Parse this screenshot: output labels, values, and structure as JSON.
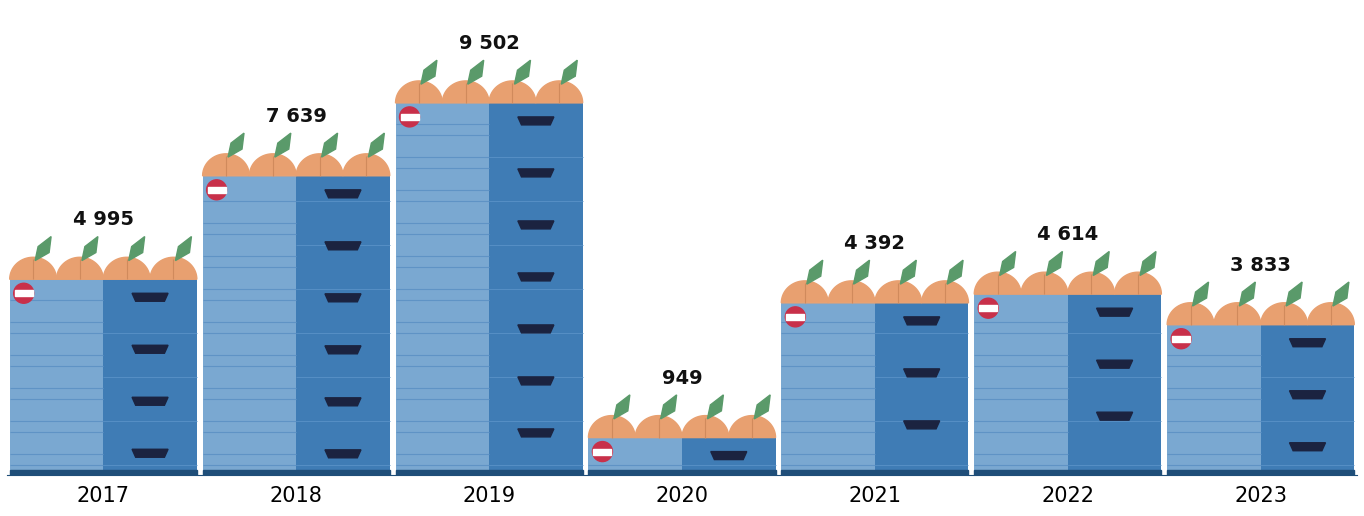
{
  "chart_data": {
    "type": "bar",
    "categories": [
      "2017",
      "2018",
      "2019",
      "2020",
      "2021",
      "2022",
      "2023"
    ],
    "values": [
      4995,
      7639,
      9502,
      949,
      4392,
      4614,
      3833
    ],
    "value_labels": [
      "4 995",
      "7 639",
      "9 502",
      "949",
      "4 392",
      "4 614",
      "3 833"
    ],
    "ylim": [
      0,
      12000
    ],
    "data_labels": true,
    "tick_labels": "x",
    "color": "#7aa8d1"
  }
}
